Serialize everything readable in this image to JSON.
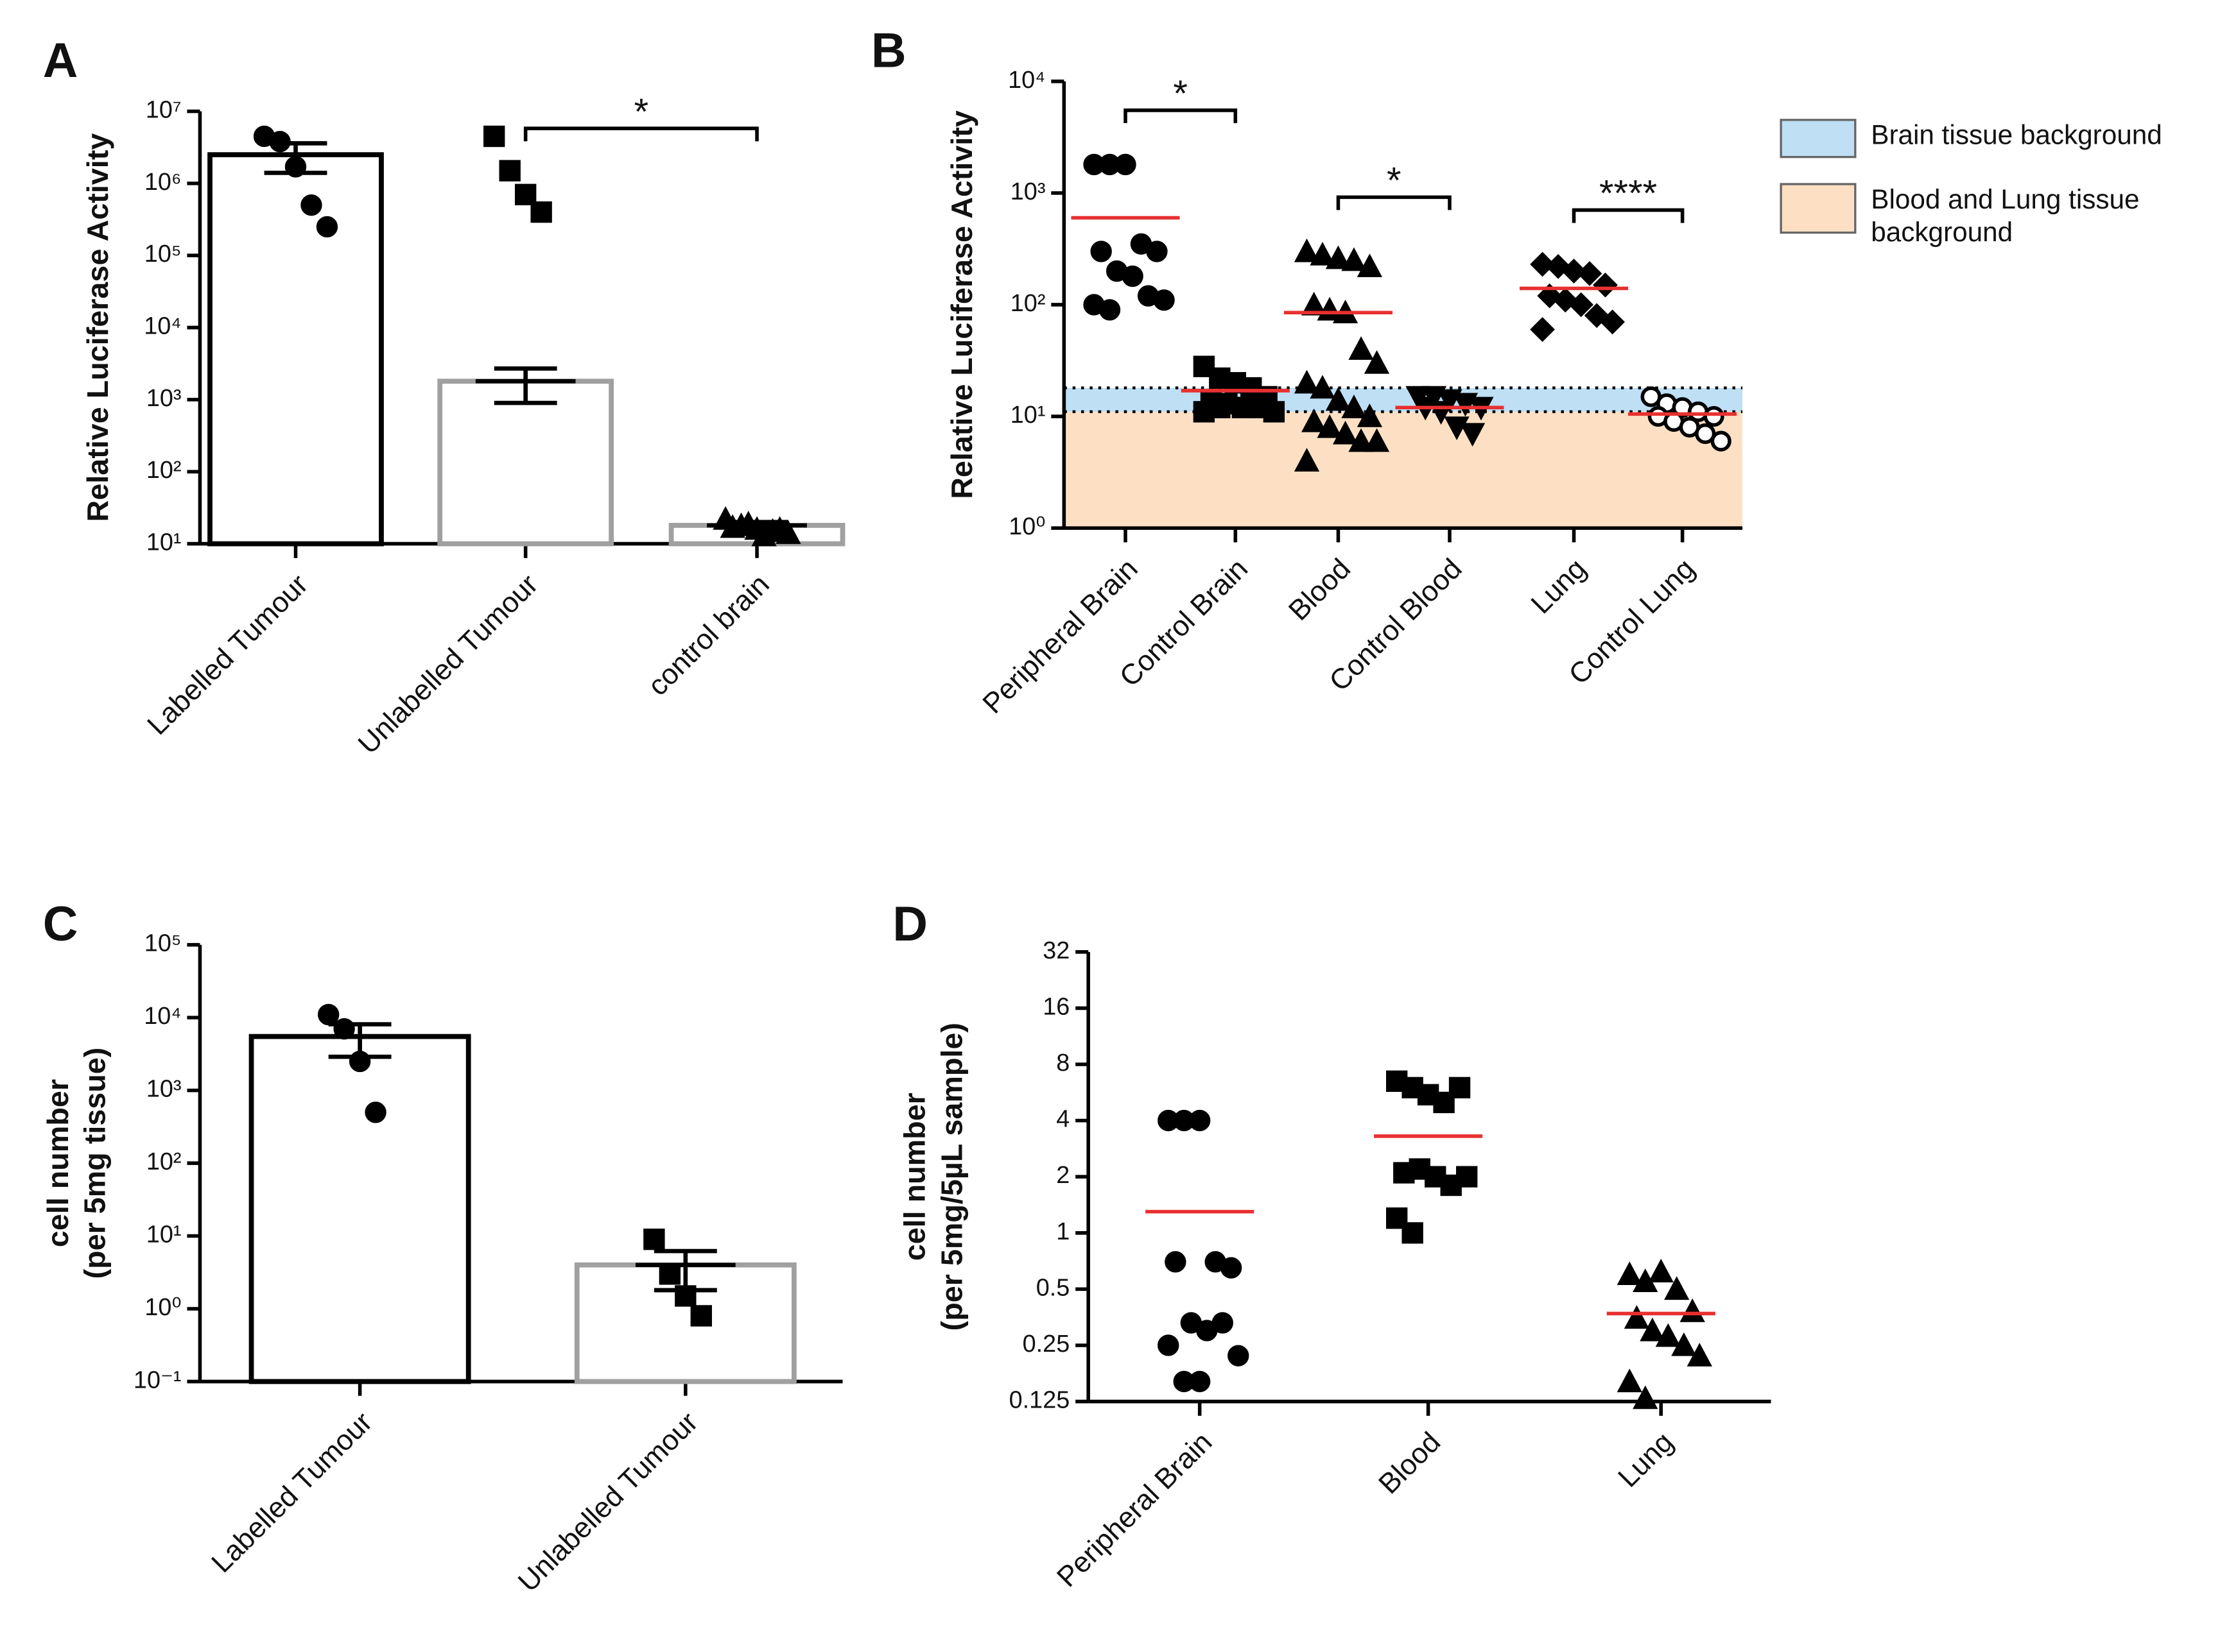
{
  "chart_data": [
    {
      "type": "bar_scatter",
      "panel": "A",
      "y_label": [
        "Relative Luciferase Activity"
      ],
      "log_y": true,
      "ylim": [
        10,
        10000000
      ],
      "yticks": [
        {
          "value": 10,
          "label": "10¹"
        },
        {
          "value": 100,
          "label": "10²"
        },
        {
          "value": 1000,
          "label": "10³"
        },
        {
          "value": 10000,
          "label": "10⁴"
        },
        {
          "value": 100000,
          "label": "10⁵"
        },
        {
          "value": 1000000,
          "label": "10⁶"
        },
        {
          "value": 10000000,
          "label": "10⁷"
        }
      ],
      "categories": [
        "Labelled Tumour",
        "Unlabelled Tumour",
        "control brain"
      ],
      "bars": [
        2500000,
        1800,
        18
      ],
      "errors": [
        1100000,
        900,
        2
      ],
      "bar_colors": [
        "#000000",
        "#a0a0a0",
        "#a0a0a0"
      ],
      "markers": [
        "circle",
        "square",
        "triangle"
      ],
      "points": [
        [
          4500000,
          3800000,
          1700000,
          500000,
          250000
        ],
        [
          4500000,
          1500000,
          700000,
          400000
        ],
        [
          22,
          18,
          16,
          15,
          14,
          17,
          19,
          13,
          16
        ]
      ],
      "annotations": [
        {
          "label": "*",
          "between": [
            "Unlabelled Tumour",
            "control brain"
          ]
        }
      ]
    },
    {
      "type": "scatter_median",
      "panel": "B",
      "y_label": [
        "Relative Luciferase Activity"
      ],
      "log_y": true,
      "ylim": [
        1,
        10000
      ],
      "yticks": [
        {
          "value": 1,
          "label": "10⁰"
        },
        {
          "value": 10,
          "label": "10¹"
        },
        {
          "value": 100,
          "label": "10²"
        },
        {
          "value": 1000,
          "label": "10³"
        },
        {
          "value": 10000,
          "label": "10⁴"
        }
      ],
      "categories": [
        "Peripheral Brain",
        "Control Brain",
        "Blood",
        "Control Blood",
        "Lung",
        "Control Lung"
      ],
      "markers": [
        "circle",
        "square",
        "triangle",
        "triangle-down",
        "diamond",
        "open-circle"
      ],
      "mean_color": "#e83030",
      "means": [
        600,
        17,
        85,
        12,
        140,
        10.5
      ],
      "points": [
        [
          1800,
          1800,
          1800,
          350,
          300,
          300,
          200,
          180,
          120,
          110,
          100,
          90
        ],
        [
          28,
          22,
          20,
          18,
          15,
          14,
          13,
          12,
          12,
          11,
          11,
          12
        ],
        [
          300,
          280,
          260,
          250,
          220,
          100,
          90,
          85,
          40,
          30,
          20,
          18,
          14,
          12,
          10,
          9,
          8,
          7,
          6,
          6,
          4
        ],
        [
          15,
          15,
          14,
          13,
          12,
          12,
          11,
          8,
          7
        ],
        [
          230,
          220,
          200,
          190,
          150,
          120,
          110,
          100,
          80,
          70,
          60
        ],
        [
          15,
          13,
          12,
          11,
          10,
          10,
          9,
          8,
          7,
          6
        ]
      ],
      "backgrounds": [
        {
          "name": "Brain tissue background",
          "color": "#bfdff5",
          "range": [
            11,
            18
          ]
        },
        {
          "name": "Blood and Lung tissue background",
          "color": "#fde0c4",
          "range": [
            1,
            11
          ]
        }
      ],
      "annotations": [
        {
          "label": "*",
          "between": [
            "Peripheral Brain",
            "Control Brain"
          ]
        },
        {
          "label": "*",
          "between": [
            "Blood",
            "Control Blood"
          ]
        },
        {
          "label": "****",
          "between": [
            "Lung",
            "Control Lung"
          ]
        }
      ]
    },
    {
      "type": "bar_scatter",
      "panel": "C",
      "y_label": [
        "cell number",
        "(per 5mg tissue)"
      ],
      "log_y": true,
      "ylim": [
        0.1,
        100000
      ],
      "yticks": [
        {
          "value": 0.1,
          "label": "10⁻¹"
        },
        {
          "value": 1,
          "label": "10⁰"
        },
        {
          "value": 10,
          "label": "10¹"
        },
        {
          "value": 100,
          "label": "10²"
        },
        {
          "value": 1000,
          "label": "10³"
        },
        {
          "value": 10000,
          "label": "10⁴"
        },
        {
          "value": 100000,
          "label": "10⁵"
        }
      ],
      "categories": [
        "Labelled Tumour",
        "Unlabelled Tumour"
      ],
      "bars": [
        5500,
        4
      ],
      "errors": [
        2600,
        2.2
      ],
      "bar_colors": [
        "#000000",
        "#a0a0a0"
      ],
      "markers": [
        "circle",
        "square"
      ],
      "points": [
        [
          11000,
          7000,
          2500,
          500
        ],
        [
          9,
          3,
          1.5,
          0.8
        ]
      ],
      "annotations": []
    },
    {
      "type": "scatter_median",
      "panel": "D",
      "y_label": [
        "cell number",
        "(per 5mg/5µL sample)"
      ],
      "log_y": true,
      "ylim": [
        0.125,
        32
      ],
      "yticks": [
        0.125,
        0.25,
        0.5,
        1,
        2,
        4,
        8,
        16,
        32
      ],
      "categories": [
        "Peripheral Brain",
        "Blood",
        "Lung"
      ],
      "markers": [
        "circle",
        "square",
        "triangle"
      ],
      "mean_color": "#e83030",
      "means": [
        1.3,
        3.3,
        0.37
      ],
      "points": [
        [
          4,
          4,
          4,
          0.7,
          0.65,
          0.7,
          0.33,
          0.3,
          0.33,
          0.22,
          0.25,
          0.16,
          0.16
        ],
        [
          6.5,
          6,
          5.5,
          5,
          6,
          2.1,
          2.2,
          2,
          1.8,
          2,
          1.2,
          1
        ],
        [
          0.6,
          0.55,
          0.62,
          0.5,
          0.38,
          0.35,
          0.3,
          0.28,
          0.25,
          0.22,
          0.16,
          0.13
        ]
      ],
      "annotations": []
    }
  ]
}
